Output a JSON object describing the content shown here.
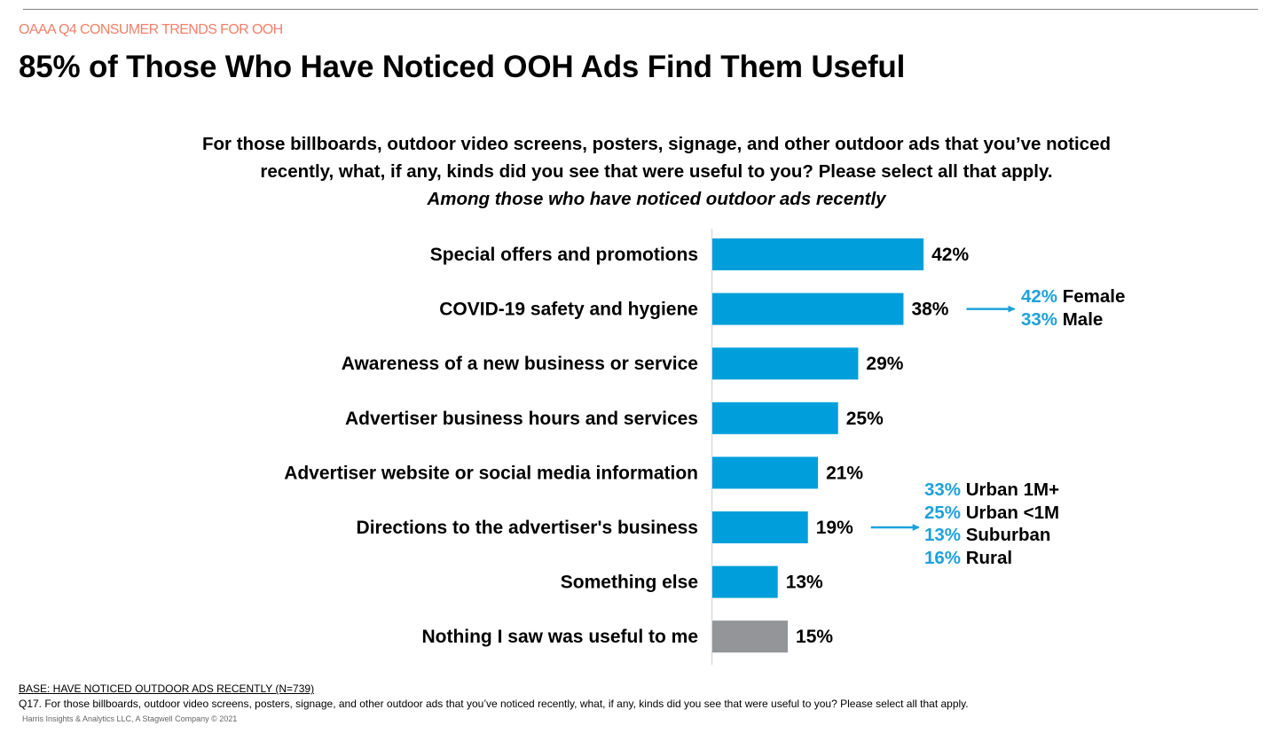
{
  "header": {
    "kicker": "OAAA Q4 CONSUMER TRENDS FOR OOH",
    "title": "85% of Those Who Have Noticed OOH Ads Find Them Useful"
  },
  "question": {
    "line1": "For those billboards, outdoor video screens, posters, signage, and other outdoor ads that you’ve noticed",
    "line2": "recently, what, if any, kinds did you see that were useful to you?  Please select all that apply.",
    "subtitle": "Among those who have noticed outdoor ads recently"
  },
  "colors": {
    "primary_bar": "#009fdb",
    "secondary_bar": "#939598",
    "callout_pct": "#1da1db",
    "kicker": "#f47f6a"
  },
  "chart_data": {
    "type": "bar",
    "orientation": "horizontal",
    "title": "For those billboards, outdoor video screens, posters, signage, and other outdoor ads that you’ve noticed recently, what, if any, kinds did you see that were useful to you?",
    "xlabel": "",
    "ylabel": "",
    "xlim": [
      0,
      50
    ],
    "grid": false,
    "unit": "%",
    "categories": [
      "Special offers and promotions",
      "COVID-19 safety and hygiene",
      "Awareness of a new business or service",
      "Advertiser business hours and services",
      "Advertiser website or social media information",
      "Directions to the advertiser's business",
      "Something else",
      "Nothing I saw was useful to me"
    ],
    "values": [
      42,
      38,
      29,
      25,
      21,
      19,
      13,
      15
    ],
    "value_labels": [
      "42%",
      "38%",
      "29%",
      "25%",
      "21%",
      "19%",
      "13%",
      "15%"
    ],
    "bar_colors": [
      "primary",
      "primary",
      "primary",
      "primary",
      "primary",
      "primary",
      "primary",
      "secondary"
    ],
    "annotations": [
      {
        "category": "COVID-19 safety and hygiene",
        "breakdown": [
          {
            "pct": "42%",
            "label": "Female"
          },
          {
            "pct": "33%",
            "label": "Male"
          }
        ]
      },
      {
        "category": "Directions to the advertiser's business",
        "breakdown": [
          {
            "pct": "33%",
            "label": "Urban 1M+"
          },
          {
            "pct": "25%",
            "label": "Urban <1M"
          },
          {
            "pct": "13%",
            "label": "Suburban"
          },
          {
            "pct": "16%",
            "label": "Rural"
          }
        ]
      }
    ]
  },
  "footer": {
    "base": "BASE: HAVE NOTICED OUTDOOR ADS RECENTLY (N=739)",
    "question": "Q17. For those billboards, outdoor video screens, posters, signage, and other outdoor ads that you’ve noticed recently, what, if any, kinds did you see that were useful to you?  Please select all that apply.",
    "copyright": "Harris Insights & Analytics LLC, A Stagwell Company © 2021"
  }
}
